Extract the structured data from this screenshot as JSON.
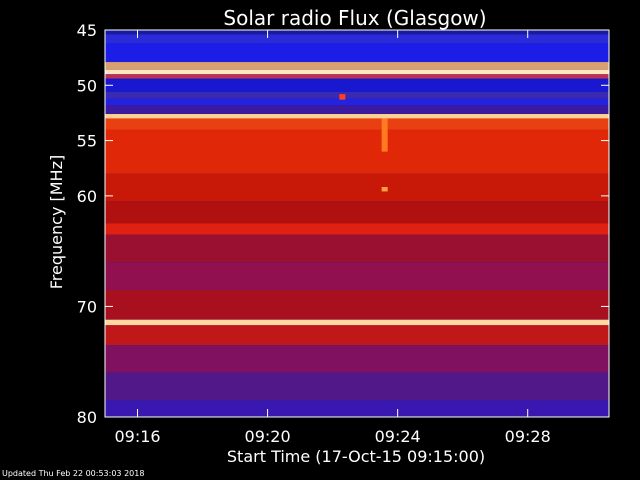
{
  "chart_data": {
    "type": "heatmap",
    "title": "Solar radio Flux (Glasgow)",
    "xlabel": "Start Time (17-Oct-15 09:15:00)",
    "ylabel": "Frequency [MHz]",
    "x_range_min": [
      0,
      15.5
    ],
    "x_ticks": [
      {
        "label": "09:16",
        "value": 1
      },
      {
        "label": "09:20",
        "value": 5
      },
      {
        "label": "09:24",
        "value": 9
      },
      {
        "label": "09:28",
        "value": 13
      }
    ],
    "y_range_mhz": [
      45,
      80
    ],
    "y_ticks": [
      45,
      50,
      55,
      60,
      70,
      80
    ],
    "y_tick_labels": [
      "45",
      "50",
      "55",
      "60",
      "70",
      "80"
    ],
    "bands_mhz": [
      {
        "from": 45.0,
        "to": 45.4,
        "color": "#1a1aa0"
      },
      {
        "from": 45.4,
        "to": 46.2,
        "color": "#2b2bd8"
      },
      {
        "from": 46.2,
        "to": 47.9,
        "color": "#1d1de8"
      },
      {
        "from": 47.9,
        "to": 48.6,
        "color": "#d8a070"
      },
      {
        "from": 48.6,
        "to": 49.0,
        "color": "#ffe8c0"
      },
      {
        "from": 49.0,
        "to": 49.4,
        "color": "#c03050"
      },
      {
        "from": 49.4,
        "to": 50.6,
        "color": "#1818d0"
      },
      {
        "from": 50.6,
        "to": 51.2,
        "color": "#3a2ab0"
      },
      {
        "from": 51.2,
        "to": 51.8,
        "color": "#2222e0"
      },
      {
        "from": 51.8,
        "to": 52.6,
        "color": "#3a1aa0"
      },
      {
        "from": 52.6,
        "to": 53.0,
        "color": "#ffd090"
      },
      {
        "from": 53.0,
        "to": 54.0,
        "color": "#e84010"
      },
      {
        "from": 54.0,
        "to": 58.0,
        "color": "#e02808"
      },
      {
        "from": 58.0,
        "to": 60.5,
        "color": "#c81808"
      },
      {
        "from": 60.5,
        "to": 62.5,
        "color": "#b01010"
      },
      {
        "from": 62.5,
        "to": 63.5,
        "color": "#e02010"
      },
      {
        "from": 63.5,
        "to": 66.0,
        "color": "#9a1030"
      },
      {
        "from": 66.0,
        "to": 68.5,
        "color": "#901050"
      },
      {
        "from": 68.5,
        "to": 71.2,
        "color": "#a81020"
      },
      {
        "from": 71.2,
        "to": 71.7,
        "color": "#ffd8a0"
      },
      {
        "from": 71.7,
        "to": 73.5,
        "color": "#c01818"
      },
      {
        "from": 73.5,
        "to": 76.0,
        "color": "#801060"
      },
      {
        "from": 76.0,
        "to": 78.5,
        "color": "#501888"
      },
      {
        "from": 78.5,
        "to": 80.0,
        "color": "#3818b0"
      }
    ],
    "events": [
      {
        "t_min": 8.6,
        "f_from": 53.0,
        "f_to": 56.0,
        "color": "#ff7a20"
      },
      {
        "t_min": 8.6,
        "f_from": 59.2,
        "f_to": 59.6,
        "color": "#ffa040"
      },
      {
        "t_min": 7.3,
        "f_from": 50.8,
        "f_to": 51.3,
        "color": "#ff4020"
      }
    ]
  },
  "footer": "Updated Thu Feb 22 00:53:03 2018"
}
